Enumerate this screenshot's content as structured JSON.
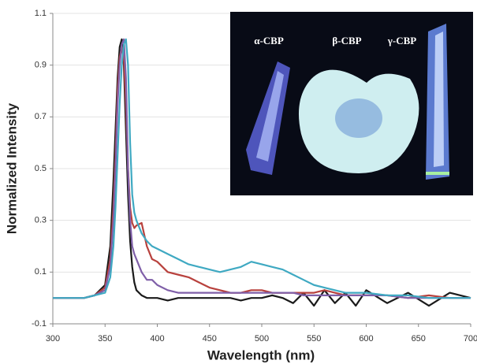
{
  "chart_data": {
    "type": "line",
    "xlabel": "Wavelength (nm)",
    "ylabel": "Normalized Intensity",
    "x": [
      300,
      310,
      320,
      330,
      340,
      350,
      355,
      358,
      360,
      362,
      364,
      366,
      368,
      370,
      372,
      374,
      376,
      378,
      380,
      385,
      390,
      395,
      400,
      410,
      420,
      430,
      440,
      450,
      460,
      470,
      480,
      490,
      500,
      510,
      520,
      530,
      540,
      550,
      560,
      570,
      580,
      590,
      600,
      620,
      640,
      660,
      680,
      700
    ],
    "series": [
      {
        "color": "#1a1a1a",
        "values": [
          0,
          0,
          0,
          0,
          0.01,
          0.05,
          0.2,
          0.45,
          0.65,
          0.85,
          0.97,
          1.0,
          0.9,
          0.65,
          0.4,
          0.22,
          0.12,
          0.06,
          0.03,
          0.01,
          0,
          0,
          0,
          -0.01,
          0,
          0,
          0,
          0,
          0,
          0,
          -0.01,
          0,
          0,
          0.01,
          0,
          -0.02,
          0.02,
          -0.03,
          0.03,
          -0.02,
          0.02,
          -0.03,
          0.03,
          -0.02,
          0.02,
          -0.03,
          0.02,
          0
        ]
      },
      {
        "color": "#b8413d",
        "values": [
          0,
          0,
          0,
          0,
          0.01,
          0.04,
          0.15,
          0.35,
          0.55,
          0.8,
          0.93,
          0.97,
          0.93,
          0.75,
          0.5,
          0.35,
          0.29,
          0.27,
          0.28,
          0.29,
          0.2,
          0.15,
          0.14,
          0.1,
          0.09,
          0.08,
          0.06,
          0.04,
          0.03,
          0.02,
          0.02,
          0.03,
          0.03,
          0.02,
          0.02,
          0.02,
          0.02,
          0.02,
          0.03,
          0.02,
          0.01,
          0.01,
          0.01,
          0.01,
          0,
          0.01,
          0,
          0
        ]
      },
      {
        "color": "#7f5fa8",
        "values": [
          0,
          0,
          0,
          0,
          0.01,
          0.03,
          0.12,
          0.3,
          0.5,
          0.75,
          0.9,
          0.98,
          1.0,
          0.85,
          0.5,
          0.3,
          0.2,
          0.17,
          0.15,
          0.1,
          0.07,
          0.07,
          0.05,
          0.03,
          0.02,
          0.02,
          0.02,
          0.02,
          0.02,
          0.02,
          0.02,
          0.02,
          0.02,
          0.02,
          0.02,
          0.02,
          0.01,
          0.01,
          0.01,
          0.01,
          0.01,
          0.01,
          0.01,
          0.01,
          0,
          0,
          0,
          0
        ]
      },
      {
        "color": "#3fa9c2",
        "values": [
          0,
          0,
          0,
          0,
          0.01,
          0.02,
          0.08,
          0.2,
          0.35,
          0.55,
          0.75,
          0.9,
          0.98,
          1.0,
          0.9,
          0.6,
          0.4,
          0.33,
          0.3,
          0.25,
          0.22,
          0.2,
          0.19,
          0.17,
          0.15,
          0.13,
          0.12,
          0.11,
          0.1,
          0.11,
          0.12,
          0.14,
          0.13,
          0.12,
          0.11,
          0.09,
          0.07,
          0.05,
          0.04,
          0.03,
          0.02,
          0.02,
          0.02,
          0.01,
          0.01,
          0,
          0,
          0
        ]
      }
    ],
    "xlim": [
      300,
      700
    ],
    "xticks": [
      300,
      350,
      400,
      450,
      500,
      550,
      600,
      650,
      700
    ],
    "ylim": [
      -0.1,
      1.1
    ],
    "yticks": [
      -0.1,
      0.1,
      0.3,
      0.5,
      0.7,
      0.9,
      1.1
    ],
    "grid": true,
    "inset_labels": [
      "α-CBP",
      "β-CBP",
      "γ-CBP"
    ]
  }
}
